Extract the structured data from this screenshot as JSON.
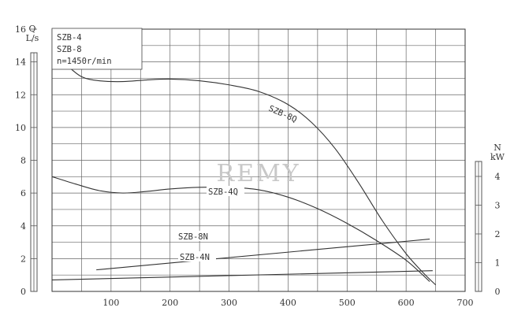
{
  "chart_data": {
    "type": "line",
    "legend_lines": [
      "SZB-4",
      "SZB-8",
      "n=1450r/min"
    ],
    "watermark": "REMY",
    "x": {
      "min": 0,
      "max": 700,
      "ticks": [
        100,
        200,
        300,
        400,
        500,
        600,
        700
      ],
      "tick_labels": [
        "100",
        "200",
        "300",
        "400",
        "500",
        "600",
        "700"
      ],
      "minor_step": 50
    },
    "y_left": {
      "label_top": "Q",
      "label_unit": "L/s",
      "min": 0,
      "max": 16,
      "ticks": [
        0,
        2,
        4,
        6,
        8,
        10,
        12,
        14,
        16
      ],
      "tick_labels": [
        "0",
        "2",
        "4",
        "6",
        "8",
        "10",
        "12",
        "14",
        "16"
      ]
    },
    "y_right": {
      "label_top": "N",
      "label_unit": "kW",
      "min": 0,
      "max": 4.5,
      "ticks": [
        0,
        1,
        2,
        3,
        4
      ],
      "tick_labels": [
        "0",
        "1",
        "2",
        "3",
        "4"
      ]
    },
    "grid": true,
    "series": [
      {
        "name": "SZB-8Q",
        "axis": "left",
        "points": [
          [
            25,
            13.8
          ],
          [
            50,
            13.1
          ],
          [
            80,
            12.85
          ],
          [
            120,
            12.8
          ],
          [
            160,
            12.9
          ],
          [
            200,
            12.95
          ],
          [
            250,
            12.85
          ],
          [
            300,
            12.6
          ],
          [
            350,
            12.2
          ],
          [
            400,
            11.4
          ],
          [
            440,
            10.3
          ],
          [
            480,
            8.7
          ],
          [
            520,
            6.6
          ],
          [
            560,
            4.3
          ],
          [
            600,
            2.3
          ],
          [
            630,
            1.1
          ],
          [
            650,
            0.4
          ]
        ]
      },
      {
        "name": "SZB-4Q",
        "axis": "left",
        "points": [
          [
            0,
            7.0
          ],
          [
            40,
            6.55
          ],
          [
            80,
            6.15
          ],
          [
            120,
            6.0
          ],
          [
            160,
            6.1
          ],
          [
            200,
            6.25
          ],
          [
            250,
            6.35
          ],
          [
            300,
            6.35
          ],
          [
            350,
            6.2
          ],
          [
            400,
            5.75
          ],
          [
            450,
            5.05
          ],
          [
            500,
            4.15
          ],
          [
            550,
            3.1
          ],
          [
            600,
            1.9
          ],
          [
            640,
            0.6
          ]
        ]
      },
      {
        "name": "SZB-8N",
        "axis": "right",
        "points": [
          [
            75,
            0.75
          ],
          [
            640,
            1.82
          ]
        ]
      },
      {
        "name": "SZB-4N",
        "axis": "right",
        "points": [
          [
            0,
            0.4
          ],
          [
            645,
            0.72
          ]
        ]
      }
    ]
  }
}
